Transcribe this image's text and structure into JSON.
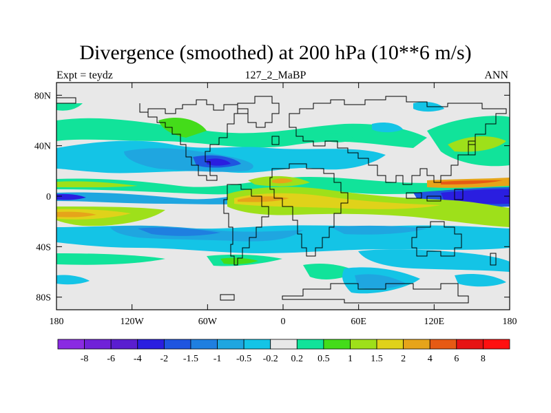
{
  "title": "Divergence (smoothed) at 200 hPa (10**6 m/s)",
  "subtitle": {
    "left": "Expt = teydz",
    "center": "127_2_MaBP",
    "right": "ANN"
  },
  "map": {
    "x_ticks": [
      "180",
      "120W",
      "60W",
      "0",
      "60E",
      "120E",
      "180"
    ],
    "y_ticks": [
      "80N",
      "40N",
      "0",
      "40S",
      "80S"
    ],
    "lon_range": [
      -180,
      180
    ],
    "lat_range": [
      -90,
      90
    ]
  },
  "colorbar": {
    "labels": [
      "-8",
      "-6",
      "-4",
      "-2",
      "-1.5",
      "-1",
      "-0.5",
      "-0.2",
      "0.2",
      "0.5",
      "1",
      "1.5",
      "2",
      "4",
      "6",
      "8"
    ],
    "colors": [
      "#8a2be2",
      "#7022d8",
      "#5a1ed0",
      "#2a1ee0",
      "#1f55e0",
      "#1f7fe0",
      "#1fa6e0",
      "#14c4e6",
      "#e8e8e8",
      "#11e39a",
      "#44dc1a",
      "#9ee01a",
      "#e0d21a",
      "#e6a41a",
      "#e65a14",
      "#e61414",
      "#ff1010"
    ]
  },
  "colors": {
    "land_outline": "#000000",
    "background_field": "#e8e8e8"
  }
}
